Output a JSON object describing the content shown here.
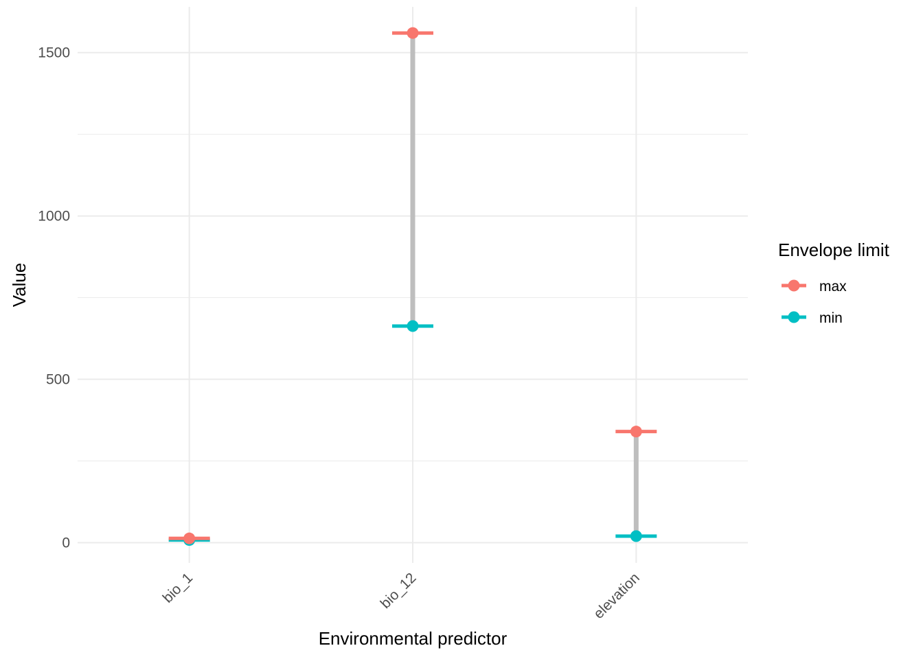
{
  "chart_data": {
    "type": "dumbbell",
    "xlabel": "Environmental predictor",
    "ylabel": "Value",
    "categories": [
      "bio_1",
      "bio_12",
      "elevation"
    ],
    "ylim": [
      -62,
      1640
    ],
    "yticks": [
      0,
      500,
      1000,
      1500
    ],
    "grid": true,
    "legend": {
      "title": "Envelope limit",
      "position": "right",
      "entries": [
        {
          "label": "max",
          "color": "#F8766D"
        },
        {
          "label": "min",
          "color": "#00BFC4"
        }
      ]
    },
    "series": [
      {
        "name": "max",
        "color": "#F8766D",
        "values": [
          13,
          1560,
          340
        ]
      },
      {
        "name": "min",
        "color": "#00BFC4",
        "values": [
          8,
          663,
          20
        ]
      }
    ],
    "connector_color": "#BEBEBE"
  }
}
